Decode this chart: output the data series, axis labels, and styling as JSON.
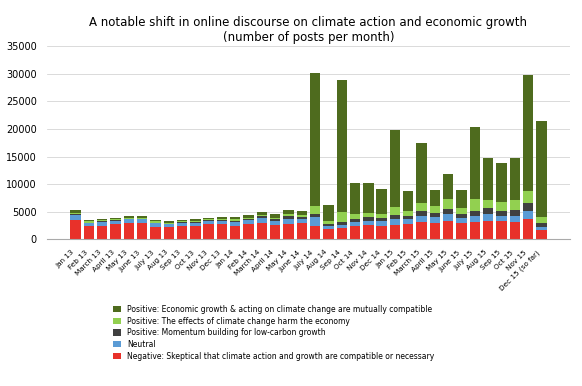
{
  "title": "A notable shift in online discourse on climate action and economic growth\n(number of posts per month)",
  "categories": [
    "Jan 13",
    "Feb 13",
    "March 13",
    "April 13",
    "May 13",
    "June 13",
    "July 13",
    "Aug 13",
    "Sep 13",
    "Oct 13",
    "Nov 13",
    "Dec 13",
    "Jan 14",
    "Feb 14",
    "March 14",
    "April 14",
    "May 14",
    "June 14",
    "July 14",
    "Aug 14",
    "Sep 14",
    "Oct 14",
    "Nov 14",
    "Dec 14",
    "Jan 15",
    "Feb 15",
    "March 15",
    "April 15",
    "May 15",
    "June 15",
    "July 15",
    "Aug 15",
    "Sep 15",
    "Oct 15",
    "Nov 15",
    "Dec 15 (so far)"
  ],
  "negative": [
    3500,
    2400,
    2500,
    2800,
    3000,
    2900,
    2300,
    2200,
    2400,
    2500,
    2700,
    2700,
    2500,
    2700,
    2900,
    2600,
    2800,
    2900,
    2500,
    1900,
    2000,
    2400,
    2600,
    2500,
    2600,
    2700,
    3100,
    3000,
    3300,
    3000,
    3200,
    3400,
    3300,
    3200,
    3700,
    1700
  ],
  "neutral": [
    900,
    500,
    600,
    600,
    600,
    700,
    600,
    500,
    600,
    500,
    600,
    700,
    700,
    800,
    900,
    700,
    900,
    800,
    1500,
    600,
    600,
    700,
    800,
    800,
    1100,
    900,
    1100,
    1000,
    1300,
    900,
    1100,
    1200,
    1000,
    1100,
    1500,
    600
  ],
  "momentum": [
    200,
    150,
    150,
    150,
    150,
    150,
    150,
    150,
    150,
    150,
    150,
    150,
    200,
    200,
    350,
    350,
    450,
    350,
    600,
    350,
    550,
    650,
    650,
    600,
    750,
    700,
    900,
    800,
    900,
    700,
    900,
    1000,
    900,
    1100,
    1300,
    600
  ],
  "effects": [
    200,
    200,
    200,
    200,
    200,
    200,
    200,
    200,
    200,
    200,
    200,
    200,
    200,
    200,
    300,
    300,
    400,
    300,
    1500,
    400,
    1800,
    900,
    700,
    700,
    1400,
    900,
    1400,
    1300,
    1800,
    1100,
    2200,
    1600,
    1600,
    1800,
    2300,
    1100
  ],
  "compatible": [
    500,
    300,
    200,
    200,
    300,
    300,
    200,
    200,
    200,
    300,
    300,
    300,
    500,
    600,
    500,
    600,
    800,
    700,
    24000,
    3000,
    24000,
    5500,
    5500,
    4500,
    14000,
    3500,
    11000,
    2800,
    4500,
    3200,
    13000,
    7500,
    7000,
    7500,
    21000,
    17500
  ],
  "colors": {
    "negative": "#e8312a",
    "neutral": "#5b9bd5",
    "momentum": "#404040",
    "effects": "#92d050",
    "compatible": "#4e6b1e"
  },
  "legend_labels": [
    "Positive: Economic growth & acting on climate change are mutually compatible",
    "Positive: The effects of climate change harm the economy",
    "Positive: Momentum building for low-carbon growth",
    "Neutral",
    "Negative: Skeptical that climate action and growth are compatible or necessary"
  ],
  "ylim": [
    0,
    35000
  ],
  "yticks": [
    0,
    5000,
    10000,
    15000,
    20000,
    25000,
    30000,
    35000
  ]
}
